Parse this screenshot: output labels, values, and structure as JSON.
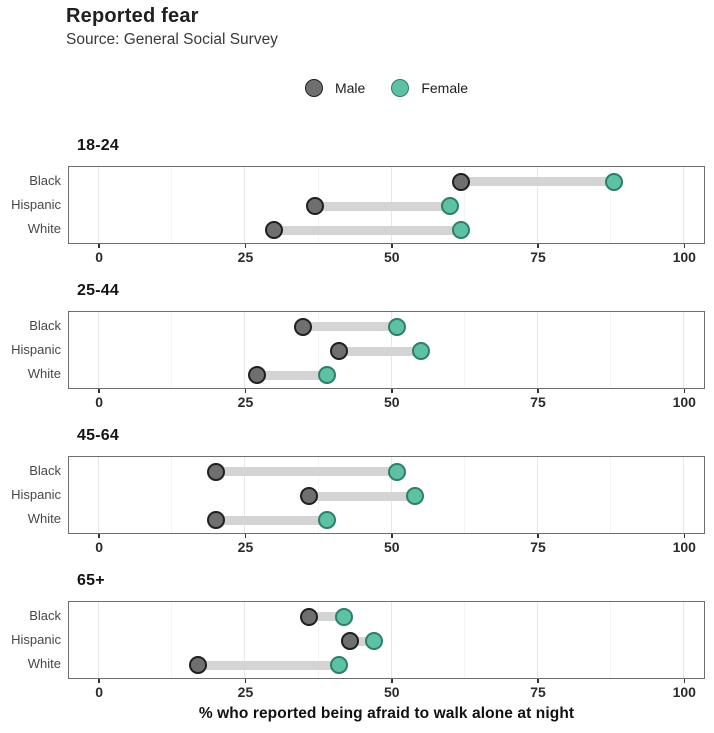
{
  "colors": {
    "male_fill": "#6f6f6f",
    "male_stroke": "#1f1f1f",
    "female_fill": "#5dc1a3",
    "female_stroke": "#2e7e68",
    "connector": "#d4d4d4",
    "panel_border": "#6e6e6e",
    "grid_major": "#e7e7e7",
    "grid_minor": "#f4f4f4",
    "tick_mark": "#333333"
  },
  "chart_data": {
    "type": "dumbbell",
    "title": "Reported fear",
    "subtitle": "Source: General Social Survey",
    "xlabel": "% who reported being afraid to walk alone at night",
    "x_ticks": [
      0,
      25,
      50,
      75,
      100
    ],
    "x_tick_labels": [
      "0",
      "25",
      "50",
      "75",
      "100"
    ],
    "x_minor_ticks": [
      12.5,
      37.5,
      62.5,
      87.5
    ],
    "xlim": [
      -5.3,
      103.5
    ],
    "grid": true,
    "legend_position": "top-center",
    "series_names": [
      "Male",
      "Female"
    ],
    "categories": [
      "Black",
      "Hispanic",
      "White"
    ],
    "facets": [
      {
        "age_group": "18-24",
        "rows": [
          {
            "race": "Black",
            "male": 62,
            "female": 88
          },
          {
            "race": "Hispanic",
            "male": 37,
            "female": 60
          },
          {
            "race": "White",
            "male": 30,
            "female": 62
          }
        ]
      },
      {
        "age_group": "25-44",
        "rows": [
          {
            "race": "Black",
            "male": 35,
            "female": 51
          },
          {
            "race": "Hispanic",
            "male": 41,
            "female": 55
          },
          {
            "race": "White",
            "male": 27,
            "female": 39
          }
        ]
      },
      {
        "age_group": "45-64",
        "rows": [
          {
            "race": "Black",
            "male": 20,
            "female": 51
          },
          {
            "race": "Hispanic",
            "male": 36,
            "female": 54
          },
          {
            "race": "White",
            "male": 20,
            "female": 39
          }
        ]
      },
      {
        "age_group": "65+",
        "rows": [
          {
            "race": "Black",
            "male": 36,
            "female": 42
          },
          {
            "race": "Hispanic",
            "male": 43,
            "female": 47
          },
          {
            "race": "White",
            "male": 17,
            "female": 41
          }
        ]
      }
    ]
  }
}
